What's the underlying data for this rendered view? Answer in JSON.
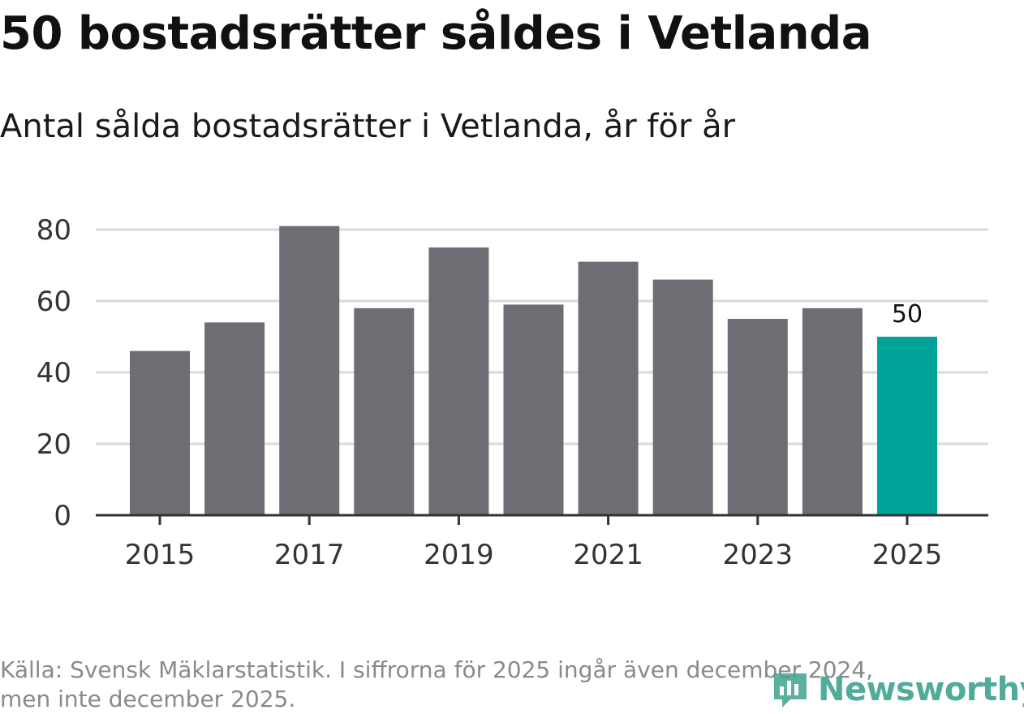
{
  "title": "50 bostadsrätter såldes i Vetlanda",
  "subtitle": "Antal sålda bostadsrätter i Vetlanda, år för år",
  "footer": {
    "line1": "Källa: Svensk Mäklarstatistik. I siffrorna för 2025 ingår även december 2024,",
    "line2": "men inte december 2025."
  },
  "logo": {
    "text": "Newsworthy"
  },
  "colors": {
    "bar": "#6e6d73",
    "highlight": "#00a398",
    "grid": "#d9d9d9",
    "axis": "#333333",
    "logo": "#3fa28f"
  },
  "chart_data": {
    "type": "bar",
    "categories": [
      "2015",
      "2016",
      "2017",
      "2018",
      "2019",
      "2020",
      "2021",
      "2022",
      "2023",
      "2024",
      "2025"
    ],
    "values": [
      46,
      54,
      81,
      58,
      75,
      59,
      71,
      66,
      55,
      58,
      50
    ],
    "highlight_index": 10,
    "value_label": "50",
    "x_tick_labels": [
      "2015",
      "2017",
      "2019",
      "2021",
      "2023",
      "2025"
    ],
    "y_ticks": [
      "0",
      "20",
      "40",
      "60",
      "80"
    ],
    "ylim": [
      0,
      80
    ],
    "xlabel": "",
    "ylabel": "",
    "grid": true
  }
}
